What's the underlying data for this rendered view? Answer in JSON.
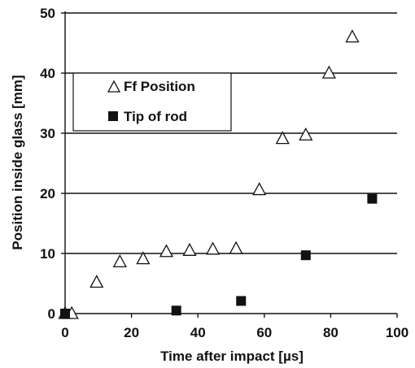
{
  "chart_data": {
    "type": "scatter",
    "title": "",
    "xlabel": "Time after impact [µs]",
    "ylabel": "Position inside glass [mm]",
    "xlim": [
      0,
      100
    ],
    "ylim": [
      0,
      50
    ],
    "xticks": [
      "0",
      "20",
      "40",
      "60",
      "80",
      "100"
    ],
    "yticks": [
      "0",
      "10",
      "20",
      "30",
      "40",
      "50"
    ],
    "grid": "horizontal",
    "legend_position": "upper-left",
    "series": [
      {
        "name": "Ff Position",
        "marker": "open-triangle",
        "x": [
          0,
          2,
          9.5,
          16.5,
          23.5,
          30.5,
          37.5,
          44.5,
          51.5,
          58.5,
          65.5,
          72.5,
          79.5,
          86.5
        ],
        "y": [
          0,
          0,
          5.2,
          8.6,
          9.1,
          10.3,
          10.5,
          10.7,
          10.8,
          20.6,
          29.1,
          29.7,
          40,
          46
        ]
      },
      {
        "name": "Tip of rod",
        "marker": "filled-square",
        "color": "#111111",
        "x": [
          0,
          33.5,
          53,
          72.5,
          92.5
        ],
        "y": [
          0,
          0.5,
          2.1,
          9.7,
          19.1
        ]
      }
    ]
  }
}
